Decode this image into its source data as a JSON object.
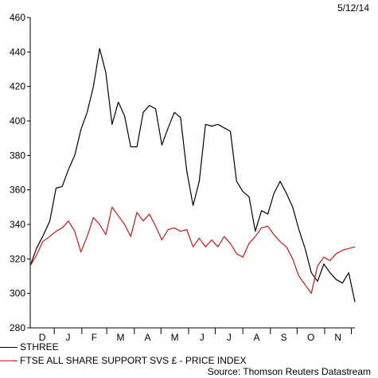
{
  "date_stamp": "5/12/14",
  "source": "Source: Thomson Reuters Datastream",
  "colors": {
    "series1": "#000000",
    "series2": "#dd1111",
    "axis": "#000000"
  },
  "chart_data": {
    "type": "line",
    "title": "",
    "xlabel": "",
    "ylabel": "",
    "ylim": [
      280,
      460
    ],
    "y_ticks": [
      280,
      300,
      320,
      340,
      360,
      380,
      400,
      420,
      440,
      460
    ],
    "x_months": [
      "D",
      "J",
      "F",
      "M",
      "A",
      "M",
      "J",
      "J",
      "A",
      "S",
      "O",
      "N"
    ],
    "x_range": [
      "2013-12-05",
      "2014-12-05"
    ],
    "grid": false,
    "legend_placement": "bottom",
    "series": [
      {
        "name": "STHREE",
        "color": "#000000",
        "points": [
          [
            "2013-12-05",
            316
          ],
          [
            "2013-12-12",
            326
          ],
          [
            "2013-12-19",
            333
          ],
          [
            "2013-12-27",
            342
          ],
          [
            "2014-01-03",
            361
          ],
          [
            "2014-01-10",
            362
          ],
          [
            "2014-01-17",
            372
          ],
          [
            "2014-01-24",
            380
          ],
          [
            "2014-01-31",
            395
          ],
          [
            "2014-02-07",
            405
          ],
          [
            "2014-02-14",
            420
          ],
          [
            "2014-02-21",
            442
          ],
          [
            "2014-02-28",
            428
          ],
          [
            "2014-03-07",
            398
          ],
          [
            "2014-03-14",
            411
          ],
          [
            "2014-03-21",
            403
          ],
          [
            "2014-03-28",
            385
          ],
          [
            "2014-04-04",
            385
          ],
          [
            "2014-04-11",
            405
          ],
          [
            "2014-04-18",
            409
          ],
          [
            "2014-04-25",
            407
          ],
          [
            "2014-05-02",
            386
          ],
          [
            "2014-05-09",
            396
          ],
          [
            "2014-05-16",
            405
          ],
          [
            "2014-05-23",
            402
          ],
          [
            "2014-05-30",
            371
          ],
          [
            "2014-06-06",
            351
          ],
          [
            "2014-06-13",
            365
          ],
          [
            "2014-06-20",
            398
          ],
          [
            "2014-06-27",
            397
          ],
          [
            "2014-07-04",
            398
          ],
          [
            "2014-07-11",
            396
          ],
          [
            "2014-07-18",
            394
          ],
          [
            "2014-07-25",
            365
          ],
          [
            "2014-08-01",
            359
          ],
          [
            "2014-08-08",
            356
          ],
          [
            "2014-08-15",
            336
          ],
          [
            "2014-08-22",
            348
          ],
          [
            "2014-08-29",
            346
          ],
          [
            "2014-09-05",
            358
          ],
          [
            "2014-09-12",
            365
          ],
          [
            "2014-09-19",
            358
          ],
          [
            "2014-09-26",
            350
          ],
          [
            "2014-10-03",
            337
          ],
          [
            "2014-10-10",
            326
          ],
          [
            "2014-10-17",
            312
          ],
          [
            "2014-10-24",
            307
          ],
          [
            "2014-10-31",
            317
          ],
          [
            "2014-11-07",
            312
          ],
          [
            "2014-11-14",
            308
          ],
          [
            "2014-11-21",
            306
          ],
          [
            "2014-11-28",
            312
          ],
          [
            "2014-12-05",
            295
          ]
        ]
      },
      {
        "name": "FTSE ALL SHARE SUPPORT SVS £ - PRICE INDEX",
        "color": "#dd1111",
        "points": [
          [
            "2013-12-05",
            316
          ],
          [
            "2013-12-12",
            322
          ],
          [
            "2013-12-19",
            330
          ],
          [
            "2013-12-27",
            333
          ],
          [
            "2014-01-03",
            336
          ],
          [
            "2014-01-10",
            338
          ],
          [
            "2014-01-17",
            342
          ],
          [
            "2014-01-24",
            336
          ],
          [
            "2014-01-31",
            324
          ],
          [
            "2014-02-07",
            333
          ],
          [
            "2014-02-14",
            344
          ],
          [
            "2014-02-21",
            340
          ],
          [
            "2014-02-28",
            334
          ],
          [
            "2014-03-07",
            350
          ],
          [
            "2014-03-14",
            345
          ],
          [
            "2014-03-21",
            340
          ],
          [
            "2014-03-28",
            333
          ],
          [
            "2014-04-04",
            347
          ],
          [
            "2014-04-11",
            342
          ],
          [
            "2014-04-18",
            346
          ],
          [
            "2014-04-25",
            339
          ],
          [
            "2014-05-02",
            331
          ],
          [
            "2014-05-09",
            337
          ],
          [
            "2014-05-16",
            338
          ],
          [
            "2014-05-23",
            336
          ],
          [
            "2014-05-30",
            337
          ],
          [
            "2014-06-06",
            327
          ],
          [
            "2014-06-13",
            332
          ],
          [
            "2014-06-20",
            327
          ],
          [
            "2014-06-27",
            331
          ],
          [
            "2014-07-04",
            327
          ],
          [
            "2014-07-11",
            333
          ],
          [
            "2014-07-18",
            329
          ],
          [
            "2014-07-25",
            323
          ],
          [
            "2014-08-01",
            321
          ],
          [
            "2014-08-08",
            329
          ],
          [
            "2014-08-15",
            333
          ],
          [
            "2014-08-22",
            338
          ],
          [
            "2014-08-29",
            339
          ],
          [
            "2014-09-05",
            334
          ],
          [
            "2014-09-12",
            330
          ],
          [
            "2014-09-19",
            327
          ],
          [
            "2014-09-26",
            320
          ],
          [
            "2014-10-03",
            310
          ],
          [
            "2014-10-10",
            305
          ],
          [
            "2014-10-17",
            300
          ],
          [
            "2014-10-24",
            316
          ],
          [
            "2014-10-31",
            321
          ],
          [
            "2014-11-07",
            319
          ],
          [
            "2014-11-14",
            323
          ],
          [
            "2014-11-21",
            325
          ],
          [
            "2014-11-28",
            326
          ],
          [
            "2014-12-05",
            327
          ]
        ]
      }
    ]
  }
}
